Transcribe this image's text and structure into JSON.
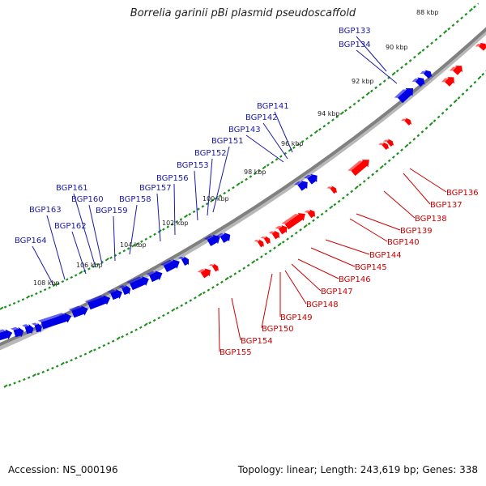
{
  "title": "Borrelia garinii pBi plasmid pseudoscaffold",
  "footer": {
    "accession": "Accession: NS_000196",
    "summary": "Topology: linear; Length: 243,619 bp; Genes: 338"
  },
  "colors": {
    "forward": "#0000e6",
    "reverse": "#ff0000",
    "backbone": "#808080",
    "ticks": "#1a8f1a",
    "forward_label": "#1a1aa8",
    "reverse_label": "#cc0000"
  },
  "scale_labels": [
    "88 kbp",
    "90 kbp",
    "92 kbp",
    "94 kbp",
    "96 kbp",
    "98 kbp",
    "100 kbp",
    "102 kbp",
    "104 kbp",
    "106 kbp",
    "108 kbp"
  ],
  "forward_genes": [
    "BGP133",
    "BGP134",
    "BGP141",
    "BGP142",
    "BGP143",
    "BGP151",
    "BGP152",
    "BGP153",
    "BGP156",
    "BGP157",
    "BGP158",
    "BGP159",
    "BGP160",
    "BGP161",
    "BGP162",
    "BGP163",
    "BGP164"
  ],
  "reverse_genes": [
    "BGP136",
    "BGP137",
    "BGP138",
    "BGP139",
    "BGP140",
    "BGP144",
    "BGP145",
    "BGP146",
    "BGP147",
    "BGP148",
    "BGP149",
    "BGP150",
    "BGP154",
    "BGP155"
  ]
}
